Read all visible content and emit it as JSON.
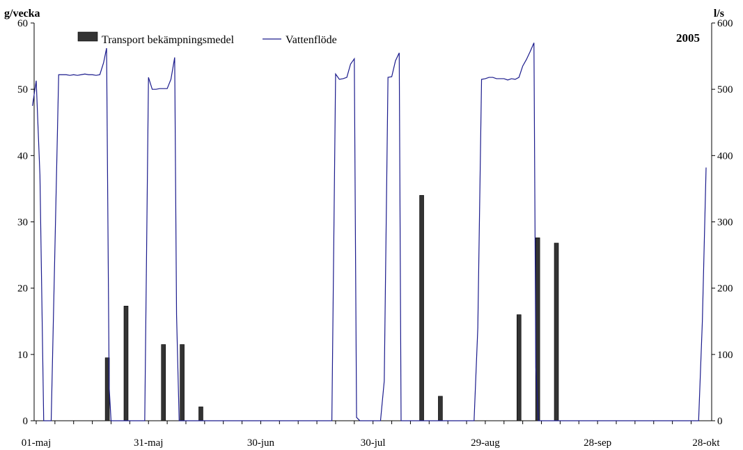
{
  "chart_data": {
    "type": "bar+line",
    "title": "",
    "annotation": "2005",
    "y_left": {
      "label": "g/vecka",
      "ylim": [
        0,
        60
      ],
      "ticks": [
        0,
        10,
        20,
        30,
        40,
        50,
        60
      ]
    },
    "y_right": {
      "label": "l/s",
      "ylim": [
        0,
        600
      ],
      "ticks": [
        0,
        100,
        200,
        300,
        400,
        500,
        600
      ]
    },
    "x": {
      "range_days": [
        1,
        180
      ],
      "tick_days": [
        1,
        31,
        61,
        91,
        121,
        151,
        181
      ],
      "tick_labels": [
        "01-maj",
        "31-maj",
        "30-jun",
        "30-jul",
        "29-aug",
        "28-sep",
        "28-okt"
      ]
    },
    "grid": false,
    "legend": {
      "placement": "top-left",
      "entries": [
        "Transport bekämpningsmedel",
        "Vattenflöde"
      ]
    },
    "colors": {
      "bars": "#333333",
      "line": "#1a1a8c"
    },
    "series": [
      {
        "name": "Transport bekämpningsmedel",
        "type": "bar",
        "axis": "left",
        "points": [
          {
            "x": 20,
            "y": 9.5
          },
          {
            "x": 25,
            "y": 17.3
          },
          {
            "x": 35,
            "y": 11.5
          },
          {
            "x": 40,
            "y": 11.5
          },
          {
            "x": 45,
            "y": 2.1
          },
          {
            "x": 104,
            "y": 34.0
          },
          {
            "x": 109,
            "y": 3.7
          },
          {
            "x": 130,
            "y": 16.0
          },
          {
            "x": 135,
            "y": 27.6
          },
          {
            "x": 140,
            "y": 26.8
          }
        ]
      },
      {
        "name": "Vattenflöde",
        "type": "line",
        "axis": "right",
        "points": [
          [
            0,
            475
          ],
          [
            1,
            513
          ],
          [
            2,
            370
          ],
          [
            3,
            0
          ],
          [
            5,
            0
          ],
          [
            6,
            260
          ],
          [
            7,
            522
          ],
          [
            8,
            522
          ],
          [
            9,
            522
          ],
          [
            10,
            521
          ],
          [
            11,
            522
          ],
          [
            12,
            521
          ],
          [
            13,
            522
          ],
          [
            14,
            523
          ],
          [
            15,
            522
          ],
          [
            16,
            522
          ],
          [
            17,
            521
          ],
          [
            18,
            522
          ],
          [
            19,
            540
          ],
          [
            19.8,
            562
          ],
          [
            20.5,
            50
          ],
          [
            21,
            0
          ],
          [
            30,
            0
          ],
          [
            31,
            518
          ],
          [
            32,
            500
          ],
          [
            33,
            500
          ],
          [
            34,
            501
          ],
          [
            35,
            501
          ],
          [
            36,
            501
          ],
          [
            37,
            515
          ],
          [
            38,
            548
          ],
          [
            38.5,
            160
          ],
          [
            39.2,
            0
          ],
          [
            80,
            0
          ],
          [
            81,
            523
          ],
          [
            82,
            515
          ],
          [
            83,
            516
          ],
          [
            84,
            518
          ],
          [
            85,
            538
          ],
          [
            86,
            546
          ],
          [
            86.6,
            5
          ],
          [
            87.5,
            0
          ],
          [
            93,
            0
          ],
          [
            94,
            60
          ],
          [
            95,
            518
          ],
          [
            96,
            519
          ],
          [
            97,
            543
          ],
          [
            98,
            555
          ],
          [
            98.5,
            0
          ],
          [
            118,
            0
          ],
          [
            119,
            140
          ],
          [
            120,
            515
          ],
          [
            121,
            516
          ],
          [
            122,
            518
          ],
          [
            123,
            518
          ],
          [
            124,
            516
          ],
          [
            125,
            516
          ],
          [
            126,
            516
          ],
          [
            127,
            514
          ],
          [
            128,
            516
          ],
          [
            129,
            515
          ],
          [
            130,
            518
          ],
          [
            131,
            535
          ],
          [
            132,
            545
          ],
          [
            133,
            557
          ],
          [
            134,
            570
          ],
          [
            134.5,
            80
          ],
          [
            135.2,
            0
          ],
          [
            178,
            0
          ],
          [
            179,
            150
          ],
          [
            180,
            382
          ]
        ]
      }
    ]
  }
}
